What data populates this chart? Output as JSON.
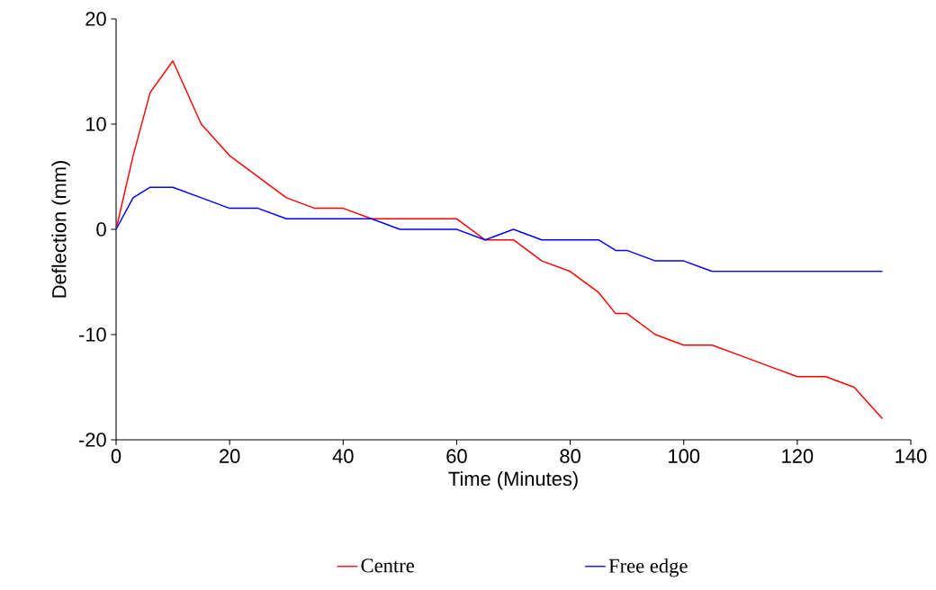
{
  "chart_data": {
    "type": "line",
    "xlabel": "Time (Minutes)",
    "ylabel": "Deflection (mm)",
    "xlim": [
      0,
      140
    ],
    "ylim": [
      -20,
      20
    ],
    "xticks": [
      0,
      20,
      40,
      60,
      80,
      100,
      120,
      140
    ],
    "yticks": [
      -20,
      -10,
      0,
      10,
      20
    ],
    "grid": false,
    "legend": "bottom",
    "marker": "none",
    "line_style": "solid",
    "series": [
      {
        "name": "Centre",
        "color": "#ff0000",
        "x": [
          0,
          3,
          6,
          10,
          15,
          20,
          25,
          30,
          35,
          40,
          45,
          50,
          55,
          60,
          65,
          70,
          75,
          80,
          85,
          88,
          90,
          95,
          100,
          105,
          110,
          115,
          120,
          125,
          130,
          135
        ],
        "values": [
          0,
          7,
          13,
          16,
          10,
          7,
          5,
          3,
          2,
          2,
          1,
          1,
          1,
          1,
          -1,
          -1,
          -3,
          -4,
          -6,
          -8,
          -8,
          -10,
          -11,
          -11,
          -12,
          -13,
          -14,
          -14,
          -15,
          -18
        ]
      },
      {
        "name": "Free edge",
        "color": "#0000ff",
        "x": [
          0,
          3,
          6,
          10,
          15,
          20,
          25,
          30,
          35,
          40,
          45,
          50,
          55,
          60,
          65,
          70,
          75,
          80,
          85,
          88,
          90,
          95,
          100,
          105,
          110,
          115,
          120,
          125,
          130,
          135
        ],
        "values": [
          0,
          3,
          4,
          4,
          3,
          2,
          2,
          1,
          1,
          1,
          1,
          0,
          0,
          0,
          -1,
          0,
          -1,
          -1,
          -1,
          -2,
          -2,
          -3,
          -3,
          -4,
          -4,
          -4,
          -4,
          -4,
          -4,
          -4
        ]
      }
    ]
  }
}
